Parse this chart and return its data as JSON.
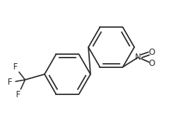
{
  "bg_color": "#ffffff",
  "line_color": "#2a2a2a",
  "lw": 1.3,
  "font_size": 8.5,
  "font_color": "#2a2a2a",
  "figsize": [
    2.51,
    1.73
  ],
  "dpi": 100,
  "F_labels": [
    "F",
    "F",
    "F"
  ],
  "N_label": "N",
  "O_label": "O"
}
